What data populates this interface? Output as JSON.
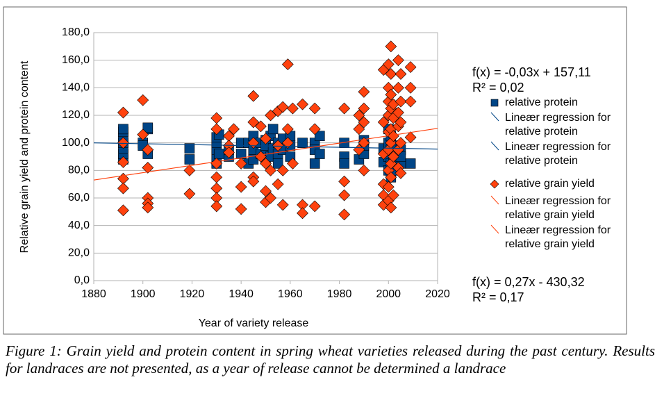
{
  "chart_data": {
    "type": "scatter",
    "xlabel": "Year of variety release",
    "ylabel": "Relative grain yield and protein content",
    "xlim": [
      1880,
      2020
    ],
    "xticks": [
      1880,
      1900,
      1920,
      1940,
      1960,
      1980,
      2000,
      2020
    ],
    "ylim": [
      0,
      180
    ],
    "yticks": [
      {
        "value": 0,
        "label": "0,0"
      },
      {
        "value": 20,
        "label": "20,0"
      },
      {
        "value": 40,
        "label": "40,0"
      },
      {
        "value": 60,
        "label": "60,0"
      },
      {
        "value": 80,
        "label": "80,0"
      },
      {
        "value": 100,
        "label": "100,0"
      },
      {
        "value": 120,
        "label": "120,0"
      },
      {
        "value": 140,
        "label": "140,0"
      },
      {
        "value": 160,
        "label": "160,0"
      },
      {
        "value": 180,
        "label": "180,0"
      }
    ],
    "grid": true,
    "series": [
      {
        "name": "relative protein",
        "color": "#004586",
        "marker": "square",
        "x": [
          1892,
          1892,
          1892,
          1892,
          1892,
          1892,
          1892,
          1900,
          1900,
          1902,
          1902,
          1902,
          1919,
          1919,
          1930,
          1930,
          1930,
          1930,
          1930,
          1931,
          1931,
          1935,
          1935,
          1940,
          1940,
          1943,
          1943,
          1945,
          1945,
          1945,
          1948,
          1948,
          1950,
          1950,
          1950,
          1950,
          1952,
          1952,
          1953,
          1953,
          1955,
          1955,
          1955,
          1957,
          1957,
          1960,
          1960,
          1960,
          1965,
          1970,
          1970,
          1970,
          1972,
          1972,
          1982,
          1982,
          1982,
          1988,
          1990,
          1990,
          1990,
          1998,
          1998,
          2000,
          2000,
          2000,
          2000,
          2001,
          2001,
          2001,
          2001,
          2002,
          2002,
          2003,
          2003,
          2005,
          2005,
          2005,
          2009
        ],
        "values": [
          88,
          92,
          96,
          100,
          104,
          108,
          110,
          100,
          98,
          110,
          111,
          92,
          96,
          88,
          85,
          90,
          95,
          100,
          104,
          106,
          92,
          90,
          95,
          100,
          92,
          100,
          85,
          95,
          105,
          88,
          92,
          100,
          95,
          102,
          88,
          98,
          105,
          90,
          110,
          96,
          100,
          92,
          85,
          103,
          95,
          98,
          90,
          105,
          100,
          100,
          85,
          95,
          92,
          105,
          90,
          100,
          85,
          88,
          92,
          98,
          102,
          86,
          96,
          80,
          90,
          100,
          110,
          75,
          85,
          95,
          105,
          88,
          98,
          80,
          92,
          95,
          85,
          90,
          85
        ]
      },
      {
        "name": "relative grain yield",
        "color": "#ff420e",
        "marker": "diamond",
        "x": [
          1892,
          1892,
          1892,
          1892,
          1892,
          1892,
          1900,
          1900,
          1902,
          1902,
          1902,
          1902,
          1902,
          1919,
          1919,
          1930,
          1930,
          1930,
          1930,
          1930,
          1930,
          1930,
          1935,
          1935,
          1935,
          1937,
          1940,
          1940,
          1940,
          1945,
          1945,
          1945,
          1945,
          1945,
          1948,
          1948,
          1950,
          1950,
          1950,
          1950,
          1952,
          1952,
          1952,
          1955,
          1955,
          1955,
          1957,
          1957,
          1957,
          1959,
          1959,
          1959,
          1961,
          1961,
          1965,
          1965,
          1965,
          1970,
          1970,
          1970,
          1982,
          1982,
          1982,
          1982,
          1988,
          1988,
          1988,
          1990,
          1990,
          1990,
          1990,
          1990,
          1998,
          1998,
          1998,
          1998,
          1998,
          1998,
          2000,
          2000,
          2000,
          2000,
          2000,
          2000,
          2000,
          2000,
          2000,
          2001,
          2001,
          2001,
          2001,
          2001,
          2001,
          2001,
          2001,
          2001,
          2002,
          2002,
          2002,
          2002,
          2002,
          2004,
          2004,
          2004,
          2004,
          2004,
          2004,
          2005,
          2005,
          2005,
          2005,
          2005,
          2009,
          2009,
          2009,
          2009
        ],
        "values": [
          122,
          100,
          86,
          74,
          67,
          51,
          131,
          106,
          95,
          82,
          60,
          56,
          53,
          80,
          63,
          118,
          110,
          85,
          75,
          67,
          60,
          54,
          105,
          98,
          93,
          110,
          68,
          52,
          85,
          134,
          115,
          100,
          75,
          72,
          90,
          112,
          103,
          85,
          65,
          57,
          120,
          80,
          60,
          123,
          98,
          70,
          126,
          80,
          55,
          157,
          110,
          100,
          125,
          85,
          128,
          55,
          49,
          125,
          110,
          54,
          125,
          72,
          62,
          48,
          120,
          110,
          95,
          137,
          125,
          115,
          100,
          80,
          153,
          115,
          92,
          70,
          62,
          55,
          157,
          140,
          130,
          120,
          108,
          95,
          80,
          68,
          58,
          170,
          150,
          135,
          125,
          110,
          100,
          85,
          75,
          53,
          128,
          118,
          105,
          90,
          62,
          160,
          140,
          122,
          112,
          95,
          82,
          150,
          130,
          115,
          100,
          78,
          155,
          140,
          130,
          104
        ]
      }
    ],
    "trendlines": [
      {
        "color": "#004586",
        "x": [
          1880,
          2020
        ],
        "values": [
          100,
          95.5
        ]
      },
      {
        "color": "#ff420e",
        "x": [
          1880,
          2020
        ],
        "values": [
          73,
          110.5
        ]
      }
    ],
    "equations": [
      "f(x) = -0,03x + 157,11",
      "R² = 0,02",
      "f(x) = 0,27x - 430,32",
      "R² = 0,17"
    ],
    "legend": [
      {
        "label": "relative protein",
        "color": "#004586",
        "marker": "square"
      },
      {
        "label": "Lineær regression for relative protein",
        "color": "#004586",
        "marker": "line"
      },
      {
        "label": "Lineær regression for relative protein",
        "color": "#004586",
        "marker": "line"
      },
      {
        "label": "relative grain yield",
        "color": "#ff420e",
        "marker": "diamond"
      },
      {
        "label": "Lineær regression for relative grain yield",
        "color": "#ff420e",
        "marker": "line"
      },
      {
        "label": "Lineær regression for relative grain yield",
        "color": "#ff420e",
        "marker": "line"
      }
    ],
    "caption": "Figure 1: Grain yield and protein content in spring wheat varieties released during the past century. Results for landraces are not presented, as a year of release cannot be determined a landrace"
  }
}
